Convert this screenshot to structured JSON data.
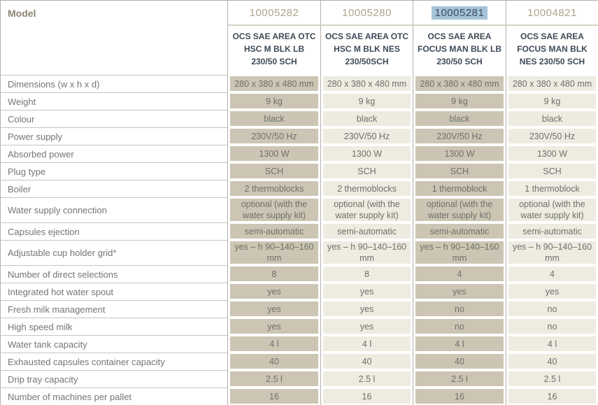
{
  "table": {
    "model_label": "Model",
    "models": [
      {
        "id": "10005282",
        "name": "OCS SAE AREA OTC HSC M BLK LB 230/50 SCH",
        "highlighted": false,
        "shade": "dark"
      },
      {
        "id": "10005280",
        "name": "OCS SAE AREA OTC HSC M BLK NES 230/50SCH",
        "highlighted": false,
        "shade": "light"
      },
      {
        "id": "10005281",
        "name": "OCS SAE AREA FOCUS MAN BLK LB 230/50 SCH",
        "highlighted": true,
        "shade": "dark"
      },
      {
        "id": "10004821",
        "name": "OCS SAE AREA FOCUS MAN BLK NES 230/50 SCH",
        "highlighted": false,
        "shade": "light"
      }
    ],
    "rows": [
      {
        "label": "Dimensions (w x h x d)",
        "values": [
          "280 x 380 x 480 mm",
          "280 x 380 x 480 mm",
          "280 x 380 x 480 mm",
          "280 x 380 x 480 mm"
        ]
      },
      {
        "label": "Weight",
        "values": [
          "9 kg",
          "9 kg",
          "9 kg",
          "9 kg"
        ]
      },
      {
        "label": "Colour",
        "values": [
          "black",
          "black",
          "black",
          "black"
        ]
      },
      {
        "label": "Power supply",
        "values": [
          "230V/50 Hz",
          "230V/50 Hz",
          "230V/50 Hz",
          "230V/50 Hz"
        ]
      },
      {
        "label": "Absorbed power",
        "values": [
          "1300 W",
          "1300 W",
          "1300 W",
          "1300 W"
        ]
      },
      {
        "label": "Plug type",
        "values": [
          "SCH",
          "SCH",
          "SCH",
          "SCH"
        ]
      },
      {
        "label": "Boiler",
        "values": [
          "2 thermoblocks",
          "2 thermoblocks",
          "1 thermoblock",
          "1 thermoblock"
        ]
      },
      {
        "label": "Water supply connection",
        "values": [
          "optional (with the water supply kit)",
          "optional (with the water supply kit)",
          "optional (with the water supply kit)",
          "optional (with the water supply kit)"
        ]
      },
      {
        "label": "Capsules ejection",
        "values": [
          "semi-automatic",
          "semi-automatic",
          "semi-automatic",
          "semi-automatic"
        ]
      },
      {
        "label": "Adjustable cup holder grid*",
        "values": [
          "yes – h 90–140–160 mm",
          "yes – h 90–140–160 mm",
          "yes – h 90–140–160 mm",
          "yes – h 90–140–160 mm"
        ]
      },
      {
        "label": "Number of direct selections",
        "values": [
          "8",
          "8",
          "4",
          "4"
        ]
      },
      {
        "label": "Integrated hot water spout",
        "values": [
          "yes",
          "yes",
          "yes",
          "yes"
        ]
      },
      {
        "label": "Fresh milk management",
        "values": [
          "yes",
          "yes",
          "no",
          "no"
        ]
      },
      {
        "label": "High speed milk",
        "values": [
          "yes",
          "yes",
          "no",
          "no"
        ]
      },
      {
        "label": "Water tank capacity",
        "values": [
          "4 l",
          "4 l",
          "4 l",
          "4 l"
        ]
      },
      {
        "label": "Exhausted capsules container capacity",
        "values": [
          "40",
          "40",
          "40",
          "40"
        ]
      },
      {
        "label": "Drip tray capacity",
        "values": [
          "2.5 l",
          "2.5 l",
          "2.5 l",
          "2.5 l"
        ]
      },
      {
        "label": "Number of machines per pallet",
        "values": [
          "16",
          "16",
          "16",
          "16"
        ]
      }
    ]
  },
  "colors": {
    "column_shade_dark": "#ccc5b3",
    "column_shade_light": "#eeebe1",
    "model_highlight": "#a4c3d9",
    "model_id_text": "#ada489",
    "product_name_text": "#3e4a57",
    "row_label_text": "#737579",
    "value_text": "#6f7069"
  }
}
